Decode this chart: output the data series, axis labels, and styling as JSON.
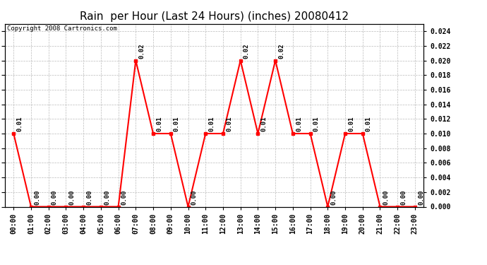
{
  "title": "Rain  per Hour (Last 24 Hours) (inches) 20080412",
  "copyright": "Copyright 2008 Cartronics.com",
  "hours": [
    "00:00",
    "01:00",
    "02:00",
    "03:00",
    "04:00",
    "05:00",
    "06:00",
    "07:00",
    "08:00",
    "09:00",
    "10:00",
    "11:00",
    "12:00",
    "13:00",
    "14:00",
    "15:00",
    "16:00",
    "17:00",
    "18:00",
    "19:00",
    "20:00",
    "21:00",
    "22:00",
    "23:00"
  ],
  "values": [
    0.01,
    0.0,
    0.0,
    0.0,
    0.0,
    0.0,
    0.0,
    0.02,
    0.01,
    0.01,
    0.0,
    0.01,
    0.01,
    0.02,
    0.01,
    0.02,
    0.01,
    0.01,
    0.0,
    0.01,
    0.01,
    0.0,
    0.0,
    0.0
  ],
  "line_color": "#FF0000",
  "marker_color": "#FF0000",
  "bg_color": "#FFFFFF",
  "grid_color": "#BBBBBB",
  "ylim": [
    0,
    0.025
  ],
  "yticks": [
    0.0,
    0.002,
    0.004,
    0.006,
    0.008,
    0.01,
    0.012,
    0.014,
    0.016,
    0.018,
    0.02,
    0.022,
    0.024
  ],
  "title_fontsize": 11,
  "tick_fontsize": 7,
  "label_fontsize": 6.5,
  "copyright_fontsize": 6.5
}
